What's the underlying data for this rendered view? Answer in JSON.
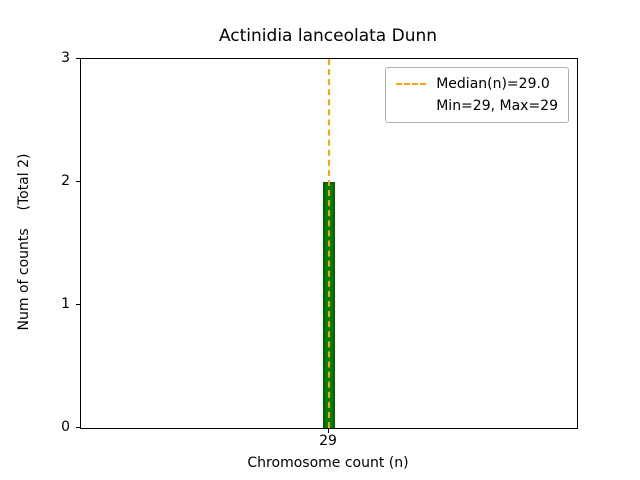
{
  "chart_data": {
    "type": "bar",
    "title": "Actinidia lanceolata Dunn",
    "xlabel": "Chromosome count (n)",
    "ylabel": "Num of counts    (Total 2)",
    "categories": [
      "29"
    ],
    "values": [
      2
    ],
    "ylim": [
      0,
      3
    ],
    "yticks": [
      "0",
      "1",
      "2",
      "3"
    ],
    "grid": false,
    "bar_color": "#008000",
    "bar_edge_color": "#0b5c0b",
    "median_line": {
      "value": 29.0,
      "color": "#FFA500",
      "style": "dashed"
    },
    "legend": {
      "position": "upper right",
      "entries": [
        "Median(n)=29.0",
        "Min=29, Max=29"
      ]
    }
  }
}
